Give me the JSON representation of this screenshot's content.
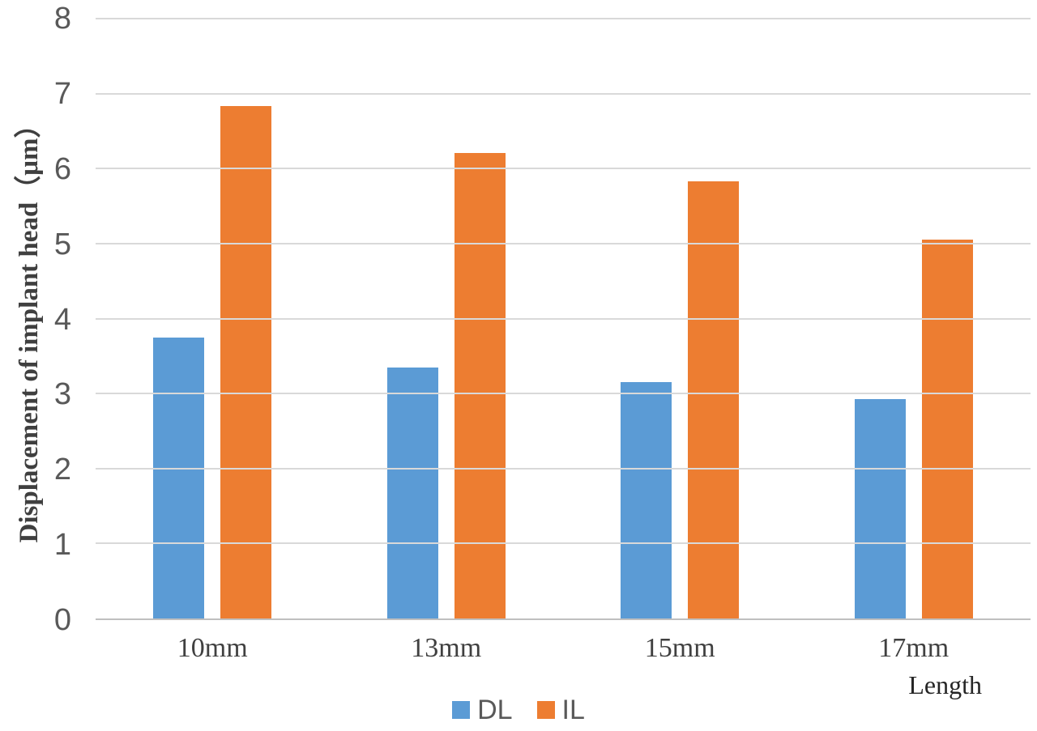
{
  "chart_data": {
    "type": "bar",
    "title": "",
    "categories": [
      "10mm",
      "13mm",
      "15mm",
      "17mm"
    ],
    "series": [
      {
        "name": "DL",
        "color": "#5B9BD5",
        "values": [
          3.75,
          3.35,
          3.15,
          2.93
        ]
      },
      {
        "name": "IL",
        "color": "#ED7D31",
        "values": [
          6.83,
          6.21,
          5.83,
          5.05
        ]
      }
    ],
    "xlabel": "Length",
    "ylabel": "Displacement of implant head（μm）",
    "ylim": [
      0,
      8
    ],
    "yticks": [
      0,
      1,
      2,
      3,
      4,
      5,
      6,
      7,
      8
    ],
    "grid": true,
    "legend_position": "bottom-center",
    "gridline_color": "#D9D9D9",
    "axis_line_color": "#BFBFBF",
    "tick_label_color": "#595959"
  }
}
